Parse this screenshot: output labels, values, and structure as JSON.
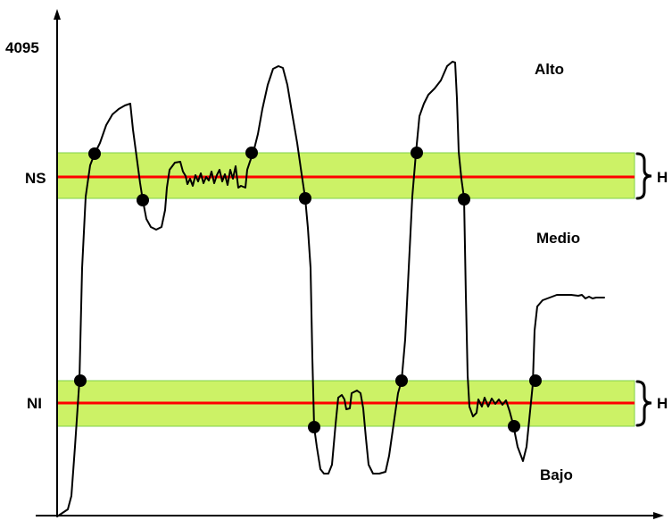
{
  "labels": {
    "max_value": "4095",
    "upper_threshold": "NS",
    "lower_threshold": "NI",
    "hysteresis_upper": "H",
    "hysteresis_lower": "H",
    "zone_high": "Alto",
    "zone_medium": "Medio",
    "zone_low": "Bajo"
  },
  "colors": {
    "threshold_line": "#ff0000",
    "hysteresis_band": "#ccf266",
    "hysteresis_band_border": "#7fd24a",
    "signal": "#000000",
    "markers": "#000000",
    "axes": "#000000"
  }
}
